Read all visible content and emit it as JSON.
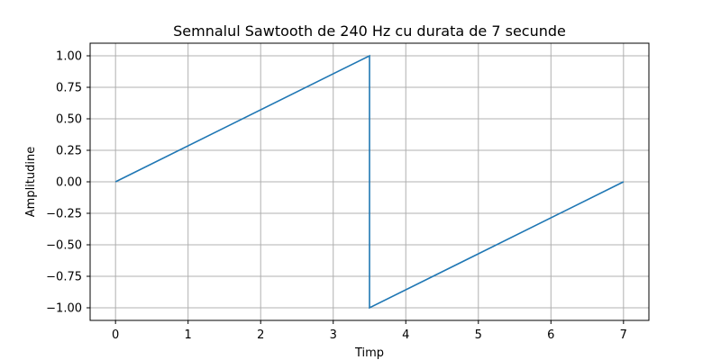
{
  "chart_data": {
    "type": "line",
    "title": "Semnalul Sawtooth de 240 Hz cu durata de 7 secunde",
    "xlabel": "Timp",
    "ylabel": "Amplitudine",
    "xlim": [
      -0.35,
      7.35
    ],
    "ylim": [
      -1.1,
      1.1
    ],
    "xticks": [
      0,
      1,
      2,
      3,
      4,
      5,
      6,
      7
    ],
    "xtick_labels": [
      "0",
      "1",
      "2",
      "3",
      "4",
      "5",
      "6",
      "7"
    ],
    "yticks": [
      1.0,
      0.75,
      0.5,
      0.25,
      0.0,
      -0.25,
      -0.5,
      -0.75,
      -1.0
    ],
    "ytick_labels": [
      "1.00",
      "0.75",
      "0.50",
      "0.25",
      "0.00",
      "−0.25",
      "−0.50",
      "−0.75",
      "−1.00"
    ],
    "grid": true,
    "series": [
      {
        "color": "#1f77b4",
        "x": [
          0,
          3.5,
          3.5,
          7
        ],
        "y": [
          0,
          1,
          -1,
          0
        ]
      }
    ]
  }
}
